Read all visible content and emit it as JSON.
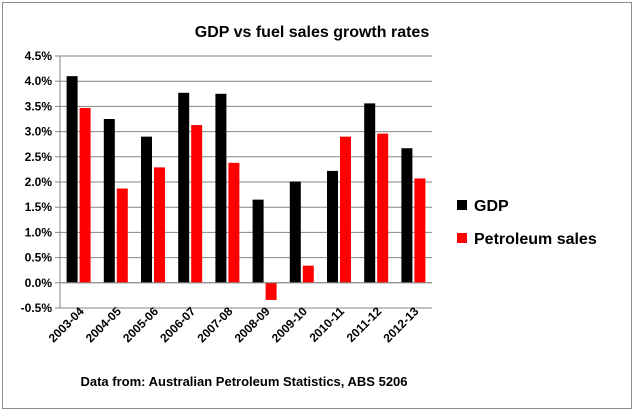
{
  "chart_data": {
    "type": "bar",
    "title": "GDP vs fuel sales growth rates",
    "source_note": "Data from: Australian Petroleum Statistics, ABS 5206",
    "categories": [
      "2003-04",
      "2004-05",
      "2005-06",
      "2006-07",
      "2007-08",
      "2008-09",
      "2009-10",
      "2010-11",
      "2011-12",
      "2012-13"
    ],
    "series": [
      {
        "name": "GDP",
        "color": "#000000",
        "values": [
          4.1,
          3.25,
          2.9,
          3.77,
          3.75,
          1.65,
          2.01,
          2.22,
          3.56,
          2.67
        ]
      },
      {
        "name": "Petroleum sales",
        "color": "#ff0000",
        "values": [
          3.47,
          1.87,
          2.29,
          3.13,
          2.38,
          -0.34,
          0.34,
          2.9,
          2.96,
          2.07
        ]
      }
    ],
    "ylim": [
      -0.5,
      4.5
    ],
    "yticks": [
      -0.5,
      0.0,
      0.5,
      1.0,
      1.5,
      2.0,
      2.5,
      3.0,
      3.5,
      4.0,
      4.5
    ],
    "ytick_labels": [
      "-0.5%",
      "0.0%",
      "0.5%",
      "1.0%",
      "1.5%",
      "2.0%",
      "2.5%",
      "3.0%",
      "3.5%",
      "4.0%",
      "4.5%"
    ],
    "grid": true,
    "legend_position": "right"
  }
}
